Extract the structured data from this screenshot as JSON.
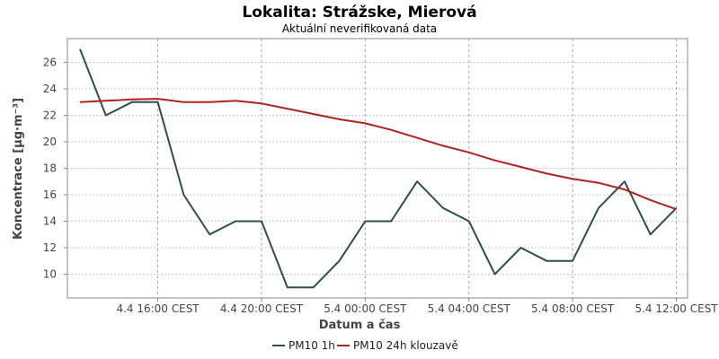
{
  "chart_data": {
    "type": "line",
    "title": "Lokalita: Strážske, Mierová",
    "subtitle": "Aktuální neverifikovaná data",
    "xlabel": "Datum a čas",
    "ylabel": "Koncentrace [µg·m⁻³]",
    "ylim": [
      8.2,
      27.8
    ],
    "y_ticks": [
      10,
      12,
      14,
      16,
      18,
      20,
      22,
      24,
      26
    ],
    "x_ticks": [
      {
        "label": "4.4 16:00 CEST",
        "index": 3
      },
      {
        "label": "4.4 20:00 CEST",
        "index": 7
      },
      {
        "label": "5.4 00:00 CEST",
        "index": 11
      },
      {
        "label": "5.4 04:00 CEST",
        "index": 15
      },
      {
        "label": "5.4 08:00 CEST",
        "index": 19
      },
      {
        "label": "5.4 12:00 CEST",
        "index": 23
      }
    ],
    "x": [
      "4.4 13:00",
      "4.4 14:00",
      "4.4 15:00",
      "4.4 16:00",
      "4.4 17:00",
      "4.4 18:00",
      "4.4 19:00",
      "4.4 20:00",
      "4.4 21:00",
      "4.4 22:00",
      "4.4 23:00",
      "5.4 00:00",
      "5.4 01:00",
      "5.4 02:00",
      "5.4 03:00",
      "5.4 04:00",
      "5.4 05:00",
      "5.4 06:00",
      "5.4 07:00",
      "5.4 08:00",
      "5.4 09:00",
      "5.4 10:00",
      "5.4 11:00",
      "5.4 12:00"
    ],
    "series": [
      {
        "name": "PM10 1h",
        "color": "#2f4f4f",
        "values": [
          27,
          22,
          23,
          23,
          16,
          13,
          14,
          14,
          9,
          9,
          11,
          14,
          14,
          17,
          15,
          14,
          10,
          12,
          11,
          11,
          15,
          17,
          13,
          15
        ]
      },
      {
        "name": "PM10 24h klouzavě",
        "color": "#b22222",
        "values": [
          23.0,
          23.1,
          23.2,
          23.25,
          23.0,
          23.0,
          23.1,
          22.9,
          22.5,
          22.1,
          21.7,
          21.4,
          20.9,
          20.3,
          19.7,
          19.2,
          18.6,
          18.1,
          17.6,
          17.2,
          16.9,
          16.4,
          15.6,
          14.9
        ]
      }
    ],
    "grid": true,
    "legend_position": "bottom-center"
  }
}
